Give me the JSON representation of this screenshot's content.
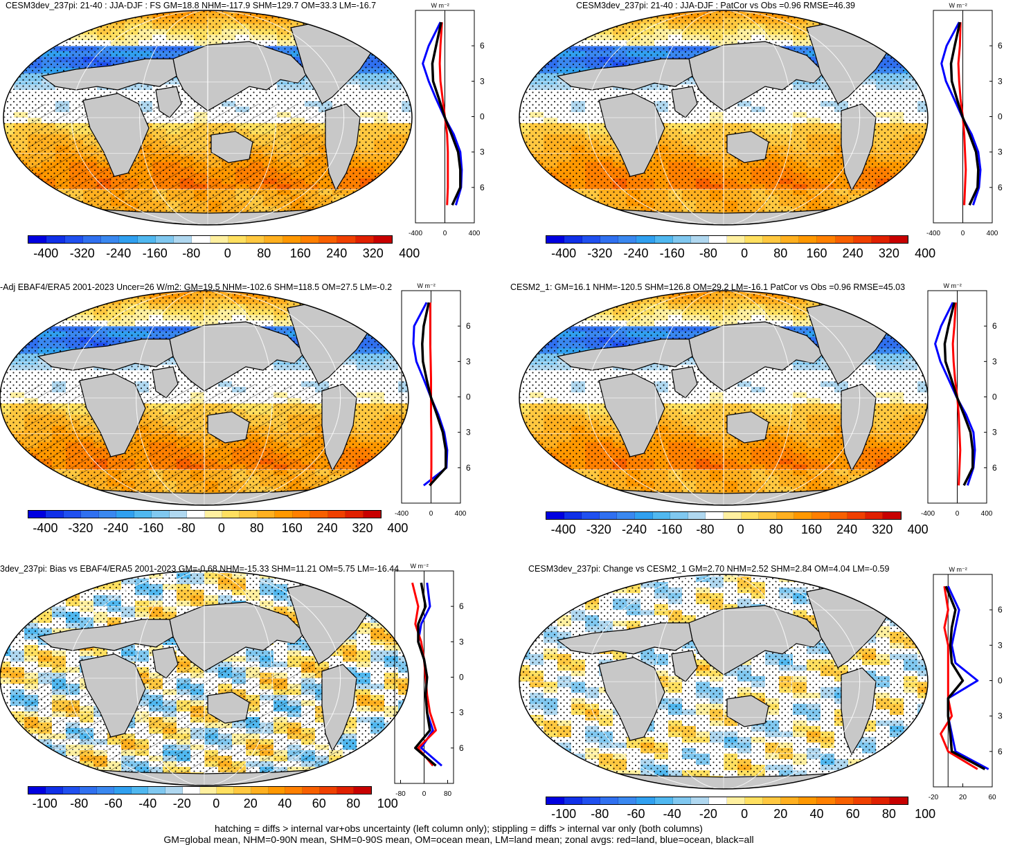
{
  "panels": [
    {
      "id": "p1",
      "title": "CESM3dev_237pi: 21-40 : JJA-DJF : FS GM=18.8 NHM=-117.9 SHM=129.7 OM=33.3 LM=-16.7",
      "scale": "full",
      "left_col": true,
      "cb_labels": [
        "-400",
        "-320",
        "-240",
        "-160",
        "-80",
        "0",
        "80",
        "160",
        "240",
        "320",
        "400"
      ],
      "zonal_ticks": [
        "-400",
        "0",
        "400"
      ]
    },
    {
      "id": "p2",
      "title": "CESM3dev_237pi: 21-40 : JJA-DJF : PatCor vs Obs =0.96 RMSE=46.39",
      "scale": "full",
      "left_col": false,
      "cb_labels": [
        "-400",
        "-320",
        "-240",
        "-160",
        "-80",
        "0",
        "80",
        "160",
        "240",
        "320",
        "400"
      ],
      "zonal_ticks": [
        "-400",
        "0",
        "400"
      ]
    },
    {
      "id": "p3",
      "title": "-Adj EBAF4/ERA5 2001-2023 Uncer=26 W/m2: GM=19.5 NHM=-102.6 SHM=118.5 OM=27.5 LM=-0.2",
      "scale": "full",
      "left_col": true,
      "cb_labels": [
        "-400",
        "-320",
        "-240",
        "-160",
        "-80",
        "0",
        "80",
        "160",
        "240",
        "320",
        "400"
      ],
      "zonal_ticks": [
        "-400",
        "0",
        "400"
      ]
    },
    {
      "id": "p4",
      "title": "CESM2_1: GM=16.1 NHM=-120.5 SHM=126.8 OM=29.2 LM=-16.1 PatCor vs Obs =0.96 RMSE=45.03",
      "scale": "full",
      "left_col": false,
      "cb_labels": [
        "-400",
        "-320",
        "-240",
        "-160",
        "-80",
        "0",
        "80",
        "160",
        "240",
        "320",
        "400"
      ],
      "zonal_ticks": [
        "-400",
        "0",
        "400"
      ]
    },
    {
      "id": "p5",
      "title": "3dev_237pi: Bias vs EBAF4/ERA5 2001-2023 GM=-0.68 NHM=-15.33 SHM=11.21 OM=5.75 LM=-16.44",
      "scale": "diff",
      "left_col": true,
      "cb_labels": [
        "-100",
        "-80",
        "-60",
        "-40",
        "-20",
        "0",
        "20",
        "40",
        "60",
        "80",
        "100"
      ],
      "zonal_ticks": [
        "-80",
        "0",
        "80"
      ]
    },
    {
      "id": "p6",
      "title": "CESM3dev_237pi: Change vs CESM2_1 GM=2.70 NHM=2.52 SHM=2.84 OM=4.04 LM=-0.59",
      "scale": "change",
      "left_col": false,
      "cb_labels": [
        "-100",
        "-80",
        "-60",
        "-40",
        "-20",
        "0",
        "20",
        "40",
        "60",
        "80",
        "100"
      ],
      "zonal_ticks": [
        "-20",
        "20",
        "60"
      ]
    }
  ],
  "lat_labels": [
    "60N",
    "30N",
    "0",
    "30S",
    "60S"
  ],
  "units": "W m⁻²",
  "colors": {
    "land": "#c8c8c8",
    "ocean_grid": "#e8e8e8",
    "palette": [
      "#0000e0",
      "#1030e8",
      "#2050f0",
      "#3070f0",
      "#3a88f0",
      "#30a0f0",
      "#50b8f0",
      "#80c8f0",
      "#b0d8f0",
      "#ffffff",
      "#ffffff",
      "#fff0a0",
      "#ffe060",
      "#ffc840",
      "#ffb020",
      "#ff9800",
      "#ff8000",
      "#f86000",
      "#f04000",
      "#e02000",
      "#c80000"
    ],
    "zonal_land": "#ff0000",
    "zonal_ocean": "#0000ff",
    "zonal_all": "#000000"
  },
  "footer": [
    "hatching = diffs > internal var+obs uncertainty (left column only); stippling = diffs > internal var only (both columns)",
    "GM=global mean, NHM=0-90N mean, SHM=0-90S mean, OM=ocean mean, LM=land mean; zonal avgs: red=land, blue=ocean, black=all"
  ],
  "chart_data": [
    {
      "type": "heatmap",
      "title": "CESM3dev_237pi: 21-40 : JJA-DJF : FS GM=18.8 NHM=-117.9 SHM=129.7 OM=33.3 LM=-16.7",
      "colorbar_range": [
        -400,
        400
      ],
      "zonal": {
        "lat": [
          80,
          60,
          45,
          30,
          15,
          0,
          -15,
          -30,
          -45,
          -60,
          -75
        ],
        "ocean": [
          -60,
          -220,
          -300,
          -220,
          -120,
          -10,
          120,
          210,
          230,
          220,
          150
        ],
        "land": [
          -40,
          -60,
          -70,
          -60,
          -30,
          0,
          30,
          40,
          40,
          40,
          30
        ],
        "all": [
          -50,
          -120,
          -170,
          -160,
          -80,
          -5,
          90,
          180,
          210,
          210,
          100
        ]
      }
    },
    {
      "type": "heatmap",
      "title": "CESM3dev_237pi: 21-40 : JJA-DJF : PatCor vs Obs =0.96 RMSE=46.39",
      "colorbar_range": [
        -400,
        400
      ],
      "zonal": {
        "lat": [
          80,
          60,
          45,
          30,
          15,
          0,
          -15,
          -30,
          -45,
          -60,
          -75
        ],
        "ocean": [
          -50,
          -220,
          -290,
          -230,
          -120,
          -10,
          120,
          210,
          240,
          220,
          140
        ],
        "land": [
          -30,
          -40,
          -60,
          -50,
          -30,
          0,
          20,
          30,
          40,
          30,
          20
        ],
        "all": [
          -40,
          -110,
          -160,
          -150,
          -80,
          -5,
          90,
          180,
          210,
          200,
          90
        ]
      }
    },
    {
      "type": "heatmap",
      "title": "-Adj EBAF4/ERA5 2001-2023 Uncer=26 W/m2: GM=19.5 NHM=-102.6 SHM=118.5 OM=27.5 LM=-0.2",
      "colorbar_range": [
        -400,
        400
      ],
      "zonal": {
        "lat": [
          80,
          60,
          45,
          30,
          15,
          0,
          -15,
          -30,
          -45,
          -60,
          -75
        ],
        "ocean": [
          -60,
          -230,
          -240,
          -200,
          -100,
          -5,
          100,
          180,
          220,
          210,
          -100
        ],
        "land": [
          -10,
          -10,
          -10,
          -5,
          0,
          0,
          0,
          5,
          5,
          5,
          0
        ],
        "all": [
          -30,
          -100,
          -120,
          -110,
          -60,
          -3,
          80,
          160,
          200,
          200,
          -20
        ]
      }
    },
    {
      "type": "heatmap",
      "title": "CESM2_1: GM=16.1 NHM=-120.5 SHM=126.8 OM=29.2 LM=-16.1 PatCor vs Obs =0.96 RMSE=45.03",
      "colorbar_range": [
        -400,
        400
      ],
      "zonal": {
        "lat": [
          80,
          60,
          45,
          30,
          15,
          0,
          -15,
          -30,
          -45,
          -60,
          -75
        ],
        "ocean": [
          -60,
          -220,
          -300,
          -230,
          -120,
          -10,
          120,
          220,
          240,
          220,
          140
        ],
        "land": [
          -20,
          -40,
          -60,
          -50,
          -30,
          0,
          20,
          30,
          40,
          30,
          20
        ],
        "all": [
          -40,
          -120,
          -170,
          -160,
          -80,
          -5,
          90,
          180,
          210,
          210,
          90
        ]
      }
    },
    {
      "type": "heatmap",
      "title": "3dev_237pi: Bias vs EBAF4/ERA5 2001-2023 GM=-0.68 NHM=-15.33 SHM=11.21 OM=5.75 LM=-16.44",
      "colorbar_range": [
        -100,
        100
      ],
      "zonal": {
        "lat": [
          80,
          60,
          45,
          30,
          15,
          0,
          -15,
          -30,
          -45,
          -60,
          -75
        ],
        "ocean": [
          10,
          20,
          -10,
          -20,
          0,
          10,
          5,
          10,
          30,
          -10,
          60
        ],
        "land": [
          -40,
          -20,
          -30,
          -10,
          0,
          5,
          10,
          20,
          40,
          -20,
          30
        ],
        "all": [
          -10,
          5,
          -20,
          -20,
          0,
          10,
          5,
          10,
          20,
          -30,
          40
        ]
      }
    },
    {
      "type": "heatmap",
      "title": "CESM3dev_237pi: Change vs CESM2_1 GM=2.70 NHM=2.52 SHM=2.84 OM=4.04 LM=-0.59",
      "colorbar_range": [
        -100,
        100
      ],
      "zonal": {
        "lat": [
          80,
          60,
          45,
          30,
          15,
          0,
          -15,
          -30,
          -45,
          -60,
          -75
        ],
        "ocean": [
          0,
          15,
          10,
          5,
          10,
          40,
          0,
          0,
          5,
          10,
          55
        ],
        "land": [
          -5,
          0,
          -5,
          0,
          0,
          0,
          0,
          5,
          -10,
          0,
          40
        ],
        "all": [
          -3,
          10,
          5,
          3,
          5,
          20,
          0,
          0,
          3,
          5,
          50
        ]
      }
    }
  ]
}
